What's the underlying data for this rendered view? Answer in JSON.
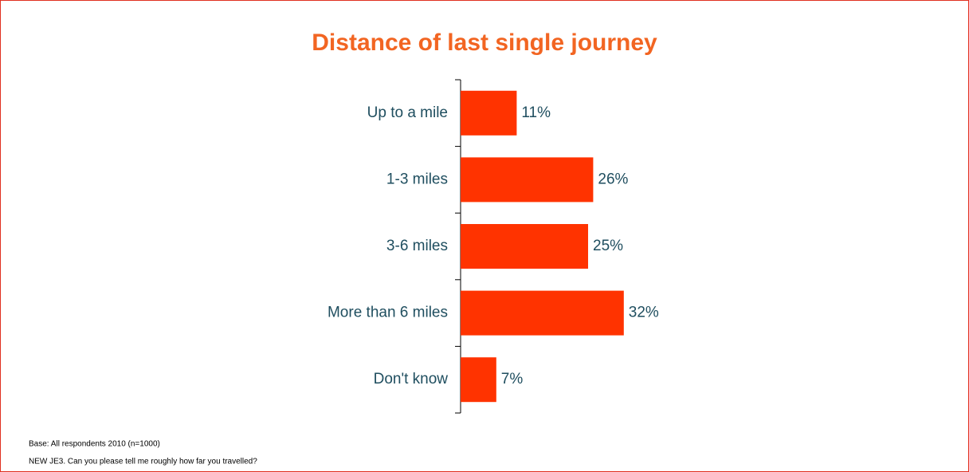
{
  "chart_data": {
    "type": "bar",
    "orientation": "horizontal",
    "title": "Distance of last single journey",
    "categories": [
      "Up to a mile",
      "1-3 miles",
      "3-6 miles",
      "More than 6 miles",
      "Don't know"
    ],
    "values": [
      11,
      26,
      25,
      32,
      7
    ],
    "value_labels": [
      "11%",
      "26%",
      "25%",
      "32%",
      "7%"
    ],
    "color": "#ff3300",
    "notes": [
      "Base: All respondents 2010 (n=1000)",
      "NEW JE3. Can you please tell me roughly how far you travelled?"
    ]
  }
}
